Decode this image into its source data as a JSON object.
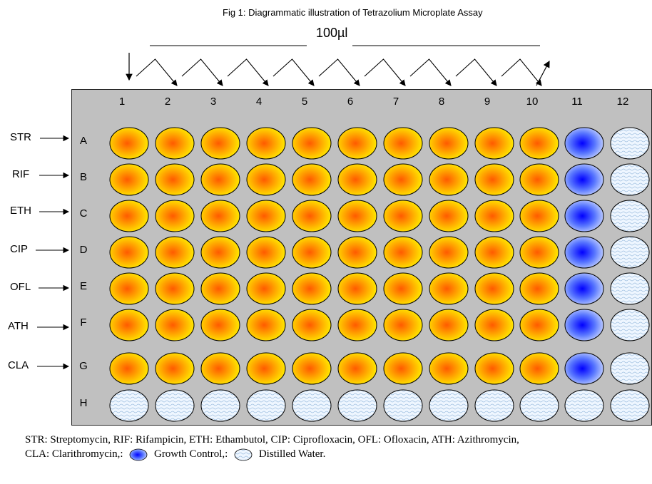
{
  "figure": {
    "title": "Fig 1:  Diagrammatic illustration of Tetrazolium Microplate Assay",
    "volume_label": "100µl"
  },
  "plate": {
    "columns": [
      "1",
      "2",
      "3",
      "4",
      "5",
      "6",
      "7",
      "8",
      "9",
      "10",
      "11",
      "12"
    ],
    "rows": [
      "A",
      "B",
      "C",
      "D",
      "E",
      "F",
      "G",
      "H"
    ],
    "drug_labels": [
      "STR",
      "RIF",
      "ETH",
      "CIP",
      "OFL",
      "ATH",
      "CLA"
    ],
    "well_types": {
      "A": [
        "drug",
        "drug",
        "drug",
        "drug",
        "drug",
        "drug",
        "drug",
        "drug",
        "drug",
        "drug",
        "growth-control",
        "distilled-water"
      ],
      "B": [
        "drug",
        "drug",
        "drug",
        "drug",
        "drug",
        "drug",
        "drug",
        "drug",
        "drug",
        "drug",
        "growth-control",
        "distilled-water"
      ],
      "C": [
        "drug",
        "drug",
        "drug",
        "drug",
        "drug",
        "drug",
        "drug",
        "drug",
        "drug",
        "drug",
        "growth-control",
        "distilled-water"
      ],
      "D": [
        "drug",
        "drug",
        "drug",
        "drug",
        "drug",
        "drug",
        "drug",
        "drug",
        "drug",
        "drug",
        "growth-control",
        "distilled-water"
      ],
      "E": [
        "drug",
        "drug",
        "drug",
        "drug",
        "drug",
        "drug",
        "drug",
        "drug",
        "drug",
        "drug",
        "growth-control",
        "distilled-water"
      ],
      "F": [
        "drug",
        "drug",
        "drug",
        "drug",
        "drug",
        "drug",
        "drug",
        "drug",
        "drug",
        "drug",
        "growth-control",
        "distilled-water"
      ],
      "G": [
        "drug",
        "drug",
        "drug",
        "drug",
        "drug",
        "drug",
        "drug",
        "drug",
        "drug",
        "drug",
        "growth-control",
        "distilled-water"
      ],
      "H": [
        "distilled-water",
        "distilled-water",
        "distilled-water",
        "distilled-water",
        "distilled-water",
        "distilled-water",
        "distilled-water",
        "distilled-water",
        "distilled-water",
        "distilled-water",
        "distilled-water",
        "distilled-water"
      ]
    },
    "colors": {
      "plate_background": "#c0c0c0",
      "drug_well_center": "#ff5a00",
      "drug_well_edge": "#ffe800",
      "growth_control_center": "#0000ff",
      "growth_control_edge": "#b8c8ff",
      "distilled_water_fill": "#eef6ff",
      "distilled_water_wave": "#9fbfe0"
    }
  },
  "legend": {
    "line1": "STR: Streptomycin, RIF: Rifampicin, ETH: Ethambutol, CIP: Ciprofloxacin, OFL: Ofloxacin, ATH: Azithromycin,",
    "line2_prefix": "CLA: Clarithromycin,:",
    "growth_control_label": "Growth Control,:",
    "distilled_water_label": "Distilled Water."
  }
}
